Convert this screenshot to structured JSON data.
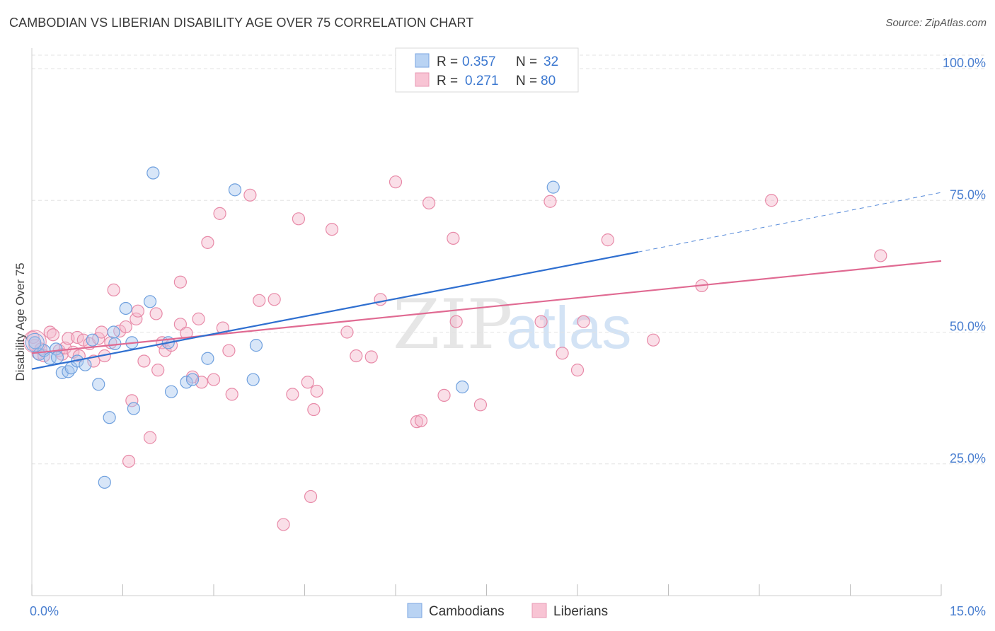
{
  "title": "CAMBODIAN VS LIBERIAN DISABILITY AGE OVER 75 CORRELATION CHART",
  "source": "Source: ZipAtlas.com",
  "watermark": {
    "zip": "ZIP",
    "atlas": "atlas"
  },
  "colors": {
    "blue_fill": "#a8c8f0",
    "blue_stroke": "#6fa0de",
    "blue_line": "#2f6fd0",
    "pink_fill": "#f5b8cc",
    "pink_stroke": "#e88aa8",
    "pink_line": "#e06a92",
    "tick_color": "#4a7fd0"
  },
  "legend": {
    "rows": [
      {
        "r_label": "R =",
        "r_value": "0.357",
        "n_label": "N =",
        "n_value": "32"
      },
      {
        "r_label": "R =",
        "r_value": "0.271",
        "n_label": "N =",
        "n_value": "80"
      }
    ]
  },
  "bottom_legend": [
    "Cambodians",
    "Liberians"
  ],
  "chart_data": {
    "type": "scatter",
    "xlabel": "",
    "ylabel": "Disability Age Over 75",
    "xlim": [
      0,
      15
    ],
    "ylim": [
      0,
      102
    ],
    "x_tick_labels": [
      "0.0%",
      "15.0%"
    ],
    "y_ticks": [
      25,
      50,
      75,
      100
    ],
    "y_tick_labels": [
      "25.0%",
      "50.0%",
      "75.0%",
      "100.0%"
    ],
    "grid": true,
    "series": [
      {
        "name": "Cambodians",
        "R": 0.357,
        "N": 32,
        "points": [
          [
            0.05,
            48.0
          ],
          [
            0.12,
            45.8
          ],
          [
            0.2,
            46.5
          ],
          [
            0.3,
            45.0
          ],
          [
            0.4,
            46.8
          ],
          [
            0.42,
            45.2
          ],
          [
            0.5,
            42.3
          ],
          [
            0.6,
            42.5
          ],
          [
            0.65,
            43.2
          ],
          [
            0.75,
            44.5
          ],
          [
            0.88,
            43.8
          ],
          [
            1.0,
            48.5
          ],
          [
            1.1,
            40.1
          ],
          [
            1.2,
            21.5
          ],
          [
            1.28,
            33.8
          ],
          [
            1.35,
            50.0
          ],
          [
            1.37,
            47.8
          ],
          [
            1.55,
            54.5
          ],
          [
            1.65,
            48.0
          ],
          [
            1.68,
            35.5
          ],
          [
            1.95,
            55.8
          ],
          [
            2.0,
            80.2
          ],
          [
            2.25,
            48.0
          ],
          [
            2.3,
            38.7
          ],
          [
            2.55,
            40.5
          ],
          [
            2.65,
            41.0
          ],
          [
            2.9,
            45.0
          ],
          [
            3.35,
            77.0
          ],
          [
            3.65,
            41.0
          ],
          [
            3.7,
            47.5
          ],
          [
            7.1,
            39.6
          ],
          [
            8.6,
            77.5
          ]
        ],
        "trend": {
          "x": [
            0,
            10
          ],
          "y": [
            43.0,
            65.2
          ],
          "dashed_to": [
            15,
            76.5
          ]
        }
      },
      {
        "name": "Liberians",
        "R": 0.271,
        "N": 80,
        "points": [
          [
            0.05,
            47.5
          ],
          [
            0.1,
            46.0
          ],
          [
            0.15,
            46.8
          ],
          [
            0.2,
            45.5
          ],
          [
            0.3,
            50.0
          ],
          [
            0.35,
            49.5
          ],
          [
            0.45,
            46.5
          ],
          [
            0.5,
            45.8
          ],
          [
            0.55,
            47.0
          ],
          [
            0.6,
            48.8
          ],
          [
            0.68,
            46.2
          ],
          [
            0.75,
            49.0
          ],
          [
            0.78,
            45.5
          ],
          [
            0.85,
            48.5
          ],
          [
            0.95,
            47.8
          ],
          [
            1.02,
            44.5
          ],
          [
            1.1,
            48.8
          ],
          [
            1.15,
            50.0
          ],
          [
            1.2,
            45.5
          ],
          [
            1.3,
            48.0
          ],
          [
            1.35,
            58.0
          ],
          [
            1.45,
            50.2
          ],
          [
            1.55,
            51.0
          ],
          [
            1.6,
            25.5
          ],
          [
            1.65,
            37.0
          ],
          [
            1.72,
            52.5
          ],
          [
            1.75,
            54.0
          ],
          [
            1.85,
            44.5
          ],
          [
            1.95,
            30.0
          ],
          [
            2.05,
            53.5
          ],
          [
            2.08,
            42.8
          ],
          [
            2.15,
            48.0
          ],
          [
            2.2,
            46.5
          ],
          [
            2.3,
            47.5
          ],
          [
            2.45,
            59.5
          ],
          [
            2.45,
            51.5
          ],
          [
            2.55,
            49.8
          ],
          [
            2.65,
            41.5
          ],
          [
            2.75,
            52.5
          ],
          [
            2.8,
            40.5
          ],
          [
            2.9,
            67.0
          ],
          [
            3.0,
            41.0
          ],
          [
            3.1,
            72.5
          ],
          [
            3.15,
            50.8
          ],
          [
            3.25,
            46.5
          ],
          [
            3.3,
            38.2
          ],
          [
            3.6,
            76.0
          ],
          [
            3.75,
            56.0
          ],
          [
            4.0,
            56.2
          ],
          [
            4.15,
            13.5
          ],
          [
            4.3,
            38.2
          ],
          [
            4.4,
            71.5
          ],
          [
            4.55,
            40.5
          ],
          [
            4.6,
            18.8
          ],
          [
            4.65,
            35.3
          ],
          [
            4.7,
            38.8
          ],
          [
            4.95,
            69.5
          ],
          [
            5.2,
            50.0
          ],
          [
            5.35,
            45.5
          ],
          [
            5.6,
            45.3
          ],
          [
            5.75,
            56.2
          ],
          [
            6.0,
            78.5
          ],
          [
            6.35,
            33.0
          ],
          [
            6.42,
            33.2
          ],
          [
            6.55,
            74.5
          ],
          [
            6.8,
            38.0
          ],
          [
            6.95,
            67.8
          ],
          [
            7.0,
            52.0
          ],
          [
            7.4,
            36.2
          ],
          [
            8.4,
            52.0
          ],
          [
            8.55,
            74.8
          ],
          [
            8.75,
            46.0
          ],
          [
            9.0,
            42.8
          ],
          [
            9.1,
            52.0
          ],
          [
            9.5,
            67.5
          ],
          [
            10.25,
            48.5
          ],
          [
            11.05,
            58.8
          ],
          [
            12.2,
            75.0
          ],
          [
            14.0,
            64.5
          ],
          [
            0.02,
            49.0
          ]
        ],
        "trend": {
          "x": [
            0,
            15
          ],
          "y": [
            46.0,
            63.5
          ]
        }
      }
    ]
  }
}
